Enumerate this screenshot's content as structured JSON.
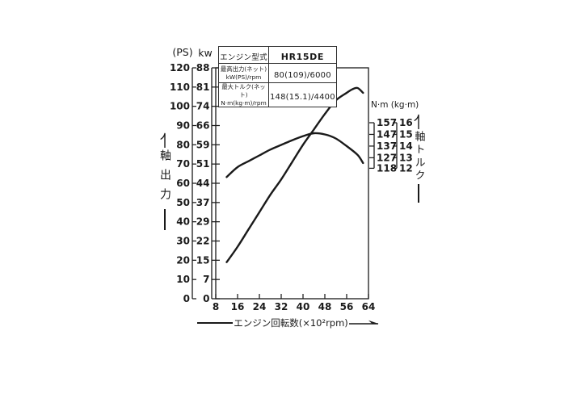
{
  "page": {
    "background": "#ffffff",
    "ink": "#1a1a1a"
  },
  "spec_table": {
    "rows": [
      {
        "label": "エンジン型式",
        "sublabel": "",
        "value": "HR15DE"
      },
      {
        "label": "最高出力(ネット)",
        "sublabel": "kW(PS)/rpm",
        "value": "80(109)/6000"
      },
      {
        "label": "最大トルク(ネット)",
        "sublabel": "N·m(kg·m)/rpm",
        "value": "148(15.1)/4400"
      }
    ]
  },
  "chart_data": {
    "type": "line",
    "title": "",
    "x_axis": {
      "label": "エンジン回転数(×10²rpm)",
      "ticks": [
        8,
        16,
        24,
        32,
        40,
        48,
        56,
        64
      ],
      "range": [
        8,
        64
      ]
    },
    "y_left": {
      "title": "軸出力",
      "unit_ps": "(PS)",
      "unit_kw": "kw",
      "ps_ticks": [
        0,
        10,
        20,
        30,
        40,
        50,
        60,
        70,
        80,
        90,
        100,
        110,
        120
      ],
      "kw_ticks": [
        0,
        7,
        15,
        22,
        29,
        37,
        44,
        51,
        59,
        66,
        74,
        81,
        88
      ],
      "range_ps": [
        0,
        120
      ]
    },
    "y_right": {
      "title": "軸トルク",
      "header": "N·m (kg·m)",
      "ticks": [
        {
          "nm": 157,
          "kgm": 16
        },
        {
          "nm": 147,
          "kgm": 15
        },
        {
          "nm": 137,
          "kgm": 14
        },
        {
          "nm": 127,
          "kgm": 13
        },
        {
          "nm": 118,
          "kgm": 12
        }
      ],
      "range_nm": [
        118,
        157
      ]
    },
    "series": [
      {
        "name": "軸出力 (shaft output)",
        "axis": "left",
        "unit": "PS",
        "x": [
          12,
          16,
          20,
          24,
          28,
          32,
          36,
          40,
          44,
          48,
          52,
          56,
          58,
          60,
          62
        ],
        "y": [
          19,
          27,
          36,
          45,
          54,
          62,
          71,
          80,
          88,
          96,
          103,
          107,
          108.8,
          109.5,
          107
        ]
      },
      {
        "name": "軸トルク (shaft torque)",
        "axis": "right",
        "unit": "N·m",
        "x": [
          12,
          16,
          20,
          24,
          28,
          32,
          36,
          40,
          44,
          48,
          52,
          56,
          60,
          62
        ],
        "y": [
          110.5,
          119,
          124,
          129,
          134,
          138,
          142,
          145.5,
          148,
          147,
          143.5,
          137,
          129.5,
          122.5
        ]
      }
    ]
  }
}
